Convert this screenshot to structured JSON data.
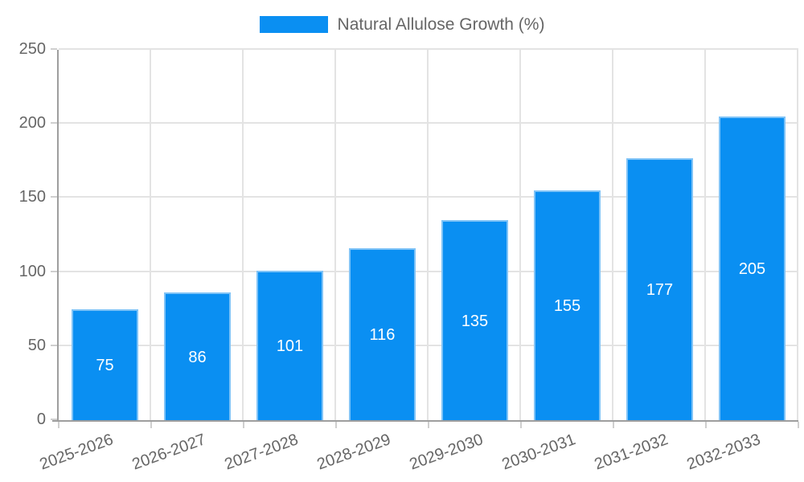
{
  "chart_data": {
    "type": "bar",
    "title": "",
    "legend_position": "top",
    "legend": [
      {
        "label": "Natural Allulose Growth (%)",
        "color": "#0a8ff2"
      }
    ],
    "categories": [
      "2025-2026",
      "2026-2027",
      "2027-2028",
      "2028-2029",
      "2029-2030",
      "2030-2031",
      "2031-2032",
      "2032-2033"
    ],
    "series": [
      {
        "name": "Natural Allulose Growth (%)",
        "values": [
          75,
          86,
          101,
          116,
          135,
          155,
          177,
          205
        ]
      }
    ],
    "value_labels_shown": true,
    "xlabel": "",
    "ylabel": "",
    "ylim": [
      0,
      250
    ],
    "yticks": [
      0,
      50,
      100,
      150,
      200,
      250
    ],
    "grid": true,
    "x_label_rotation_deg": -20,
    "colors": {
      "bar_fill": "#0a8ff2",
      "bar_border": "#7fc3f7",
      "value_label": "#ffffff",
      "grid": "#e3e3e3",
      "axis_line": "#9e9e9e",
      "tick_mark": "#cfcfcf",
      "tick_text": "#666666",
      "legend_text": "#666666",
      "background": "#ffffff"
    }
  }
}
